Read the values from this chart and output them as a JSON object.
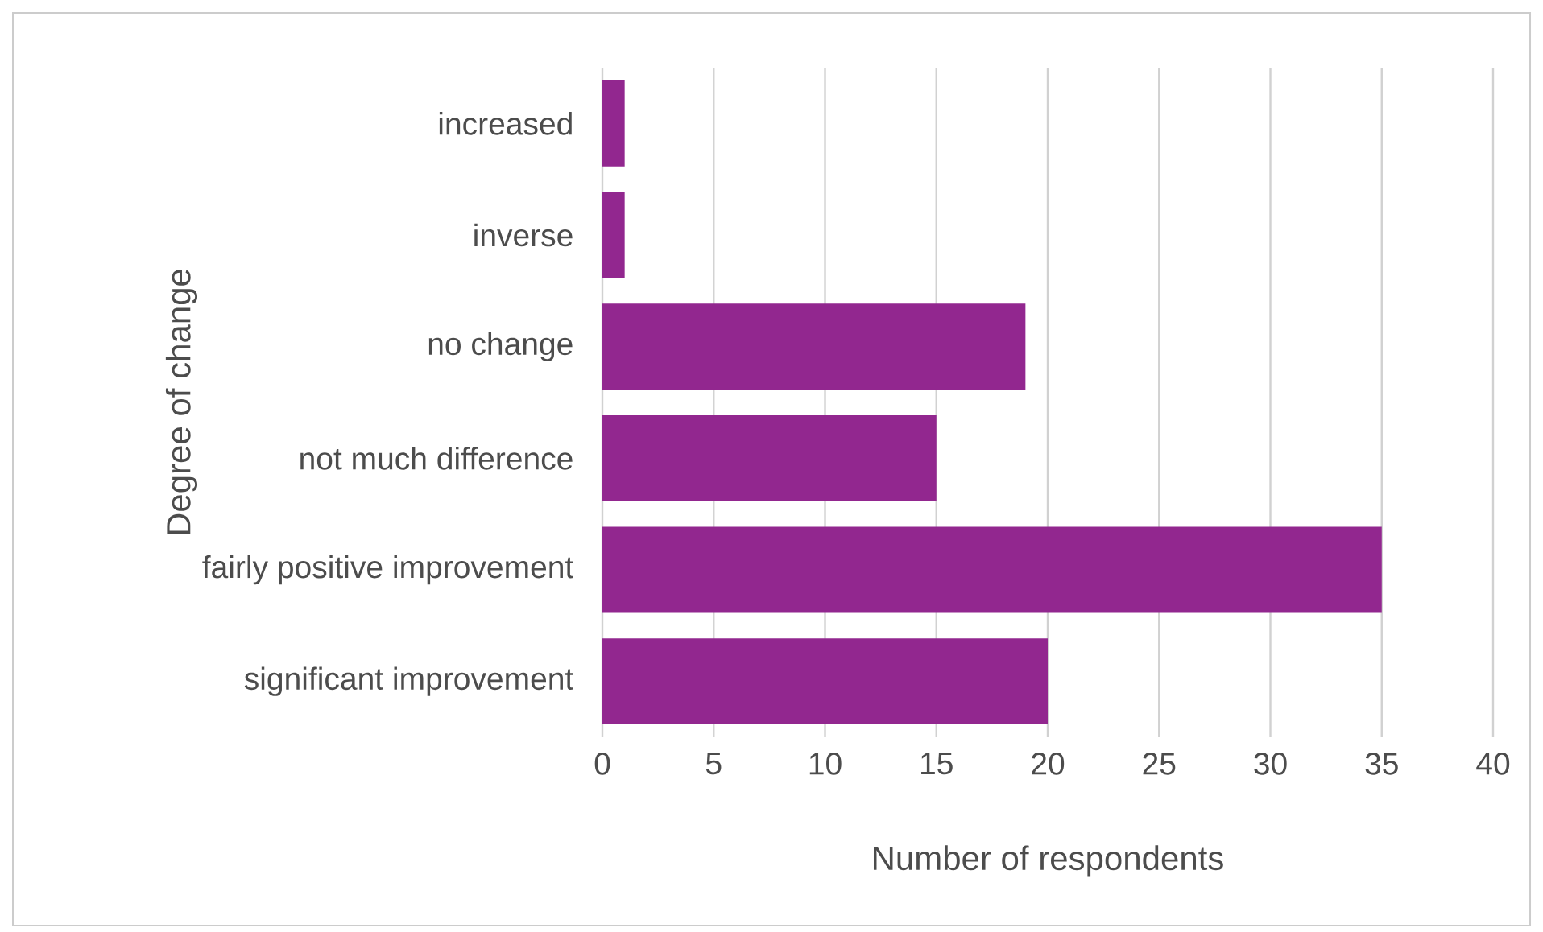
{
  "chart_data": {
    "type": "bar",
    "orientation": "horizontal",
    "categories": [
      "increased",
      "inverse",
      "no change",
      "not much difference",
      "fairly positive improvement",
      "significant improvement"
    ],
    "values": [
      1,
      1,
      19,
      15,
      35,
      20
    ],
    "color": "#92278f",
    "xlabel": "Number of respondents",
    "ylabel": "Degree of change",
    "xlim": [
      0,
      40
    ],
    "xticks": [
      0,
      5,
      10,
      15,
      20,
      25,
      30,
      35,
      40
    ],
    "grid": "x"
  }
}
